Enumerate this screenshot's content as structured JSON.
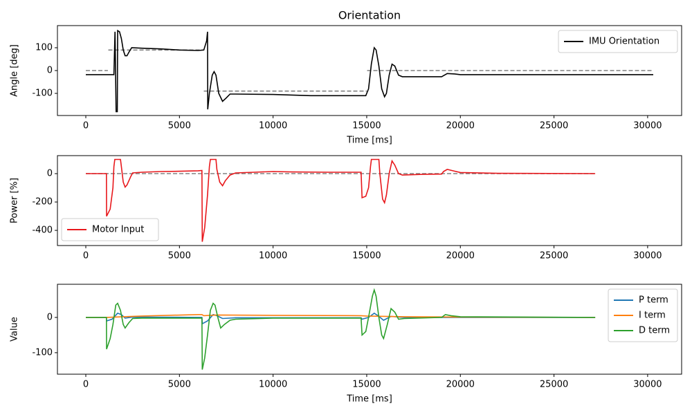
{
  "chart_data": [
    {
      "type": "line",
      "title": "Orientation",
      "xlabel": "Time [ms]",
      "ylabel": "Angle [deg]",
      "xlim": [
        -1515,
        31815
      ],
      "ylim": [
        -197,
        197
      ],
      "xticks": [
        0,
        5000,
        10000,
        15000,
        20000,
        25000,
        30000
      ],
      "yticks": [
        -100,
        0,
        100
      ],
      "legend": "upper right",
      "series": [
        {
          "color": "#808080",
          "dashed": true,
          "x": [
            0,
            1180,
            1200,
            1200,
            6280,
            6300,
            6300,
            15000,
            15020,
            15020,
            30300
          ],
          "values": [
            0,
            0,
            null,
            90,
            90,
            null,
            -90,
            -90,
            null,
            0,
            0
          ]
        },
        {
          "name": "IMU Orientation",
          "color": "#000000",
          "x": [
            0,
            1500,
            1560,
            1620,
            1680,
            1700,
            1800,
            1900,
            2000,
            2100,
            2200,
            2300,
            2450,
            3000,
            4000,
            5000,
            6000,
            6300,
            6450,
            6500,
            6510,
            6600,
            6750,
            6850,
            6950,
            7100,
            7300,
            7500,
            7700,
            8000,
            10000,
            12000,
            14000,
            14950,
            15100,
            15250,
            15400,
            15500,
            15650,
            15800,
            15950,
            16050,
            16200,
            16350,
            16500,
            16700,
            16900,
            19000,
            19300,
            19700,
            20000,
            30300
          ],
          "values": [
            -18,
            -18,
            170,
            -180,
            -180,
            175,
            170,
            140,
            90,
            65,
            65,
            80,
            100,
            98,
            95,
            90,
            88,
            90,
            130,
            170,
            -170,
            -100,
            -20,
            -5,
            -20,
            -100,
            -135,
            -120,
            -103,
            -103,
            -105,
            -110,
            -110,
            -110,
            -80,
            30,
            100,
            90,
            20,
            -80,
            -115,
            -100,
            -20,
            28,
            20,
            -20,
            -27,
            -27,
            -13,
            -15,
            -18,
            -18
          ]
        }
      ]
    },
    {
      "type": "line",
      "ylabel": "Power [%]",
      "xlim": [
        -1515,
        31815
      ],
      "ylim": [
        -507,
        127
      ],
      "xticks": [
        0,
        5000,
        10000,
        15000,
        20000,
        25000,
        30000
      ],
      "yticks": [
        -400,
        -200,
        0
      ],
      "legend": "lower left",
      "series": [
        {
          "color": "#808080",
          "dashed": true,
          "x": [
            0,
            27200
          ],
          "values": [
            0,
            0
          ]
        },
        {
          "name": "Motor Input",
          "color": "#e8171b",
          "x": [
            0,
            1100,
            1110,
            1300,
            1450,
            1500,
            1550,
            1850,
            1900,
            2000,
            2100,
            2200,
            2400,
            2500,
            3000,
            4000,
            5000,
            6000,
            6200,
            6220,
            6350,
            6500,
            6600,
            6650,
            6950,
            7000,
            7150,
            7300,
            7450,
            7700,
            8000,
            9000,
            10000,
            11000,
            13000,
            14700,
            14750,
            14950,
            15100,
            15200,
            15250,
            15650,
            15700,
            15850,
            15950,
            16050,
            16200,
            16350,
            16500,
            16700,
            16900,
            18000,
            19000,
            19100,
            19300,
            19600,
            20000,
            22000,
            27200
          ],
          "values": [
            0,
            0,
            -300,
            -250,
            -100,
            50,
            100,
            100,
            50,
            -60,
            -95,
            -80,
            -20,
            5,
            10,
            15,
            17,
            20,
            22,
            -480,
            -380,
            -150,
            50,
            100,
            100,
            30,
            -60,
            -85,
            -50,
            -10,
            5,
            10,
            15,
            12,
            10,
            10,
            -170,
            -160,
            -100,
            50,
            100,
            100,
            0,
            -180,
            -205,
            -150,
            0,
            90,
            60,
            0,
            -10,
            -5,
            -3,
            15,
            30,
            20,
            8,
            2,
            0
          ]
        }
      ]
    },
    {
      "type": "line",
      "xlabel": "Time [ms]",
      "ylabel": "Value",
      "xlim": [
        -1515,
        31815
      ],
      "ylim": [
        -161,
        94
      ],
      "xticks": [
        0,
        5000,
        10000,
        15000,
        20000,
        25000,
        30000
      ],
      "yticks": [
        -100,
        0
      ],
      "legend": "upper right",
      "series": [
        {
          "name": "P term",
          "color": "#1f77b4",
          "x": [
            0,
            1100,
            1110,
            1400,
            1700,
            1900,
            2100,
            2500,
            6200,
            6220,
            6500,
            6800,
            7000,
            7300,
            8000,
            14700,
            14750,
            15100,
            15400,
            15600,
            15900,
            16300,
            17000,
            27200
          ],
          "values": [
            0,
            0,
            -10,
            -5,
            12,
            8,
            -2,
            1,
            0,
            -18,
            -10,
            8,
            5,
            -3,
            -1,
            -1,
            -5,
            0,
            12,
            5,
            -8,
            3,
            0,
            0
          ]
        },
        {
          "name": "I term",
          "color": "#ff7f0e",
          "x": [
            0,
            1100,
            2000,
            3000,
            6000,
            6200,
            6300,
            7000,
            10000,
            14700,
            15000,
            17000,
            20000,
            27200
          ],
          "values": [
            0,
            0,
            2,
            4,
            8,
            8,
            5,
            7,
            6,
            5,
            4,
            2,
            1,
            0
          ]
        },
        {
          "name": "D term",
          "color": "#2ca02c",
          "x": [
            0,
            1100,
            1110,
            1300,
            1450,
            1600,
            1700,
            1850,
            2000,
            2100,
            2300,
            2500,
            3000,
            6200,
            6220,
            6350,
            6500,
            6650,
            6800,
            6900,
            7050,
            7200,
            7400,
            7700,
            8000,
            10000,
            14700,
            14750,
            14950,
            15100,
            15300,
            15400,
            15500,
            15650,
            15800,
            15900,
            16100,
            16300,
            16500,
            16700,
            17000,
            19000,
            19200,
            19500,
            20000,
            27200
          ],
          "values": [
            0,
            0,
            -90,
            -60,
            -20,
            35,
            40,
            20,
            -20,
            -30,
            -15,
            -3,
            -2,
            -2,
            -148,
            -115,
            -50,
            20,
            40,
            35,
            0,
            -30,
            -20,
            -8,
            -5,
            -2,
            -2,
            -50,
            -40,
            0,
            60,
            78,
            60,
            0,
            -50,
            -60,
            -20,
            25,
            15,
            -5,
            -3,
            0,
            8,
            5,
            2,
            0
          ]
        }
      ]
    }
  ]
}
